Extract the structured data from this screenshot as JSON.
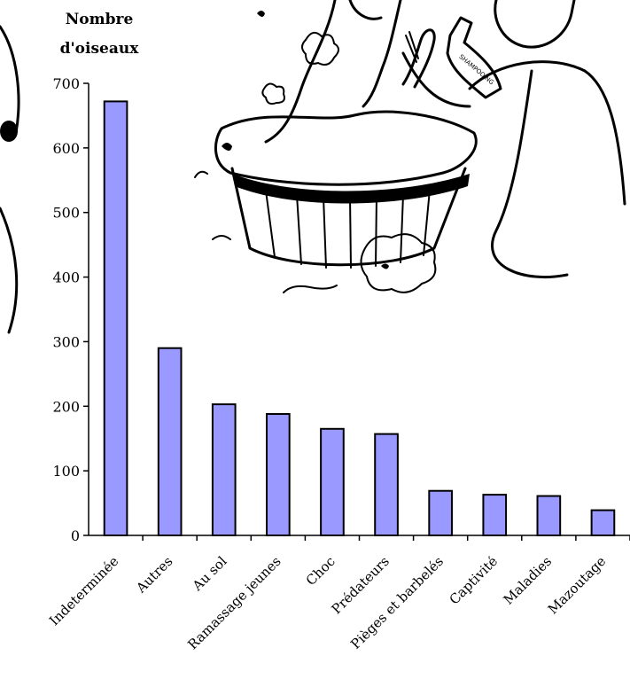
{
  "chart_data": {
    "type": "bar",
    "ylabel": "Nombre d'oiseaux",
    "ylabel_lines": [
      "Nombre",
      "d'oiseaux"
    ],
    "xlabel": "",
    "title": "",
    "ylim": [
      0,
      700
    ],
    "yticks": [
      0,
      100,
      200,
      300,
      400,
      500,
      600,
      700
    ],
    "categories": [
      "Indeterminée",
      "Autres",
      "Au sol",
      "Ramassage jeunes",
      "Choc",
      "Prédateurs",
      "Pièges et barbelés",
      "Captivité",
      "Maladies",
      "Mazoutage"
    ],
    "values": [
      672,
      290,
      203,
      188,
      165,
      157,
      69,
      63,
      61,
      39
    ],
    "bar_color": "#9999ff",
    "grid": false,
    "legend": "none"
  },
  "illustration": {
    "icon": "bird-washing-illustration-icon",
    "bottle_text": "SHAMPOOING"
  }
}
